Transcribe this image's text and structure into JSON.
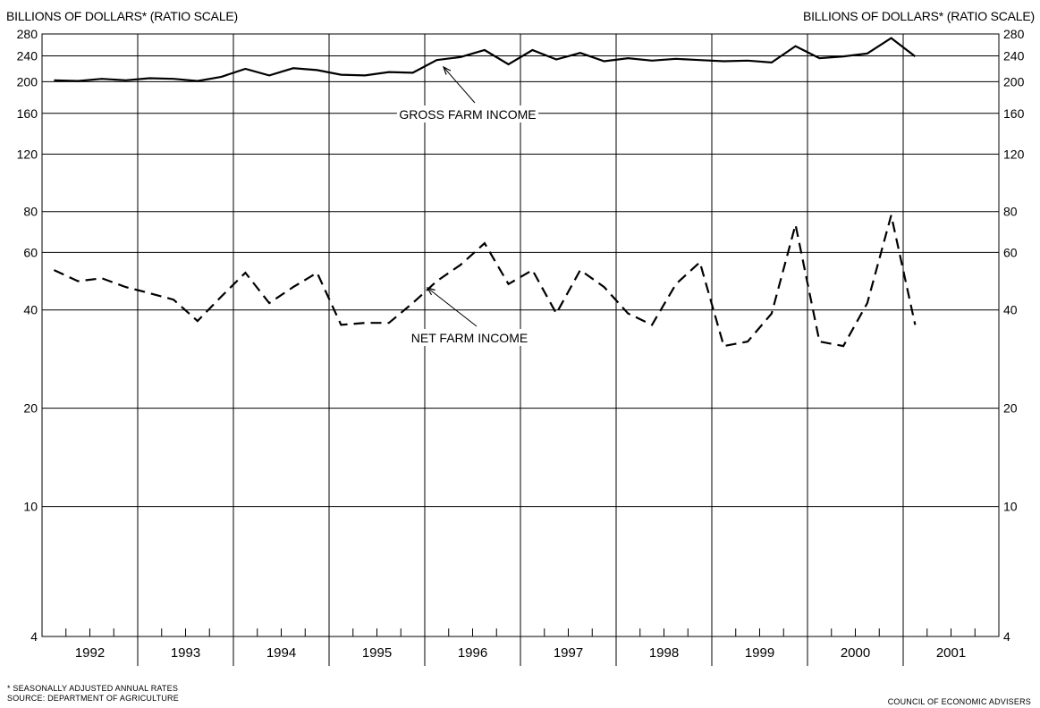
{
  "axes": {
    "left_title": "BILLIONS OF DOLLARS* (RATIO SCALE)",
    "right_title": "BILLIONS OF DOLLARS* (RATIO SCALE)"
  },
  "footnotes": {
    "note": "* SEASONALLY ADJUSTED ANNUAL RATES",
    "source": "SOURCE: DEPARTMENT OF AGRICULTURE",
    "credit": "COUNCIL OF ECONOMIC ADVISERS"
  },
  "chart_data": {
    "type": "line",
    "title": "",
    "xlabel": "",
    "ylabel": "BILLIONS OF DOLLARS* (RATIO SCALE)",
    "y_scale": "log",
    "ylim": [
      4,
      280
    ],
    "yticks": [
      4,
      10,
      20,
      40,
      60,
      80,
      120,
      160,
      200,
      240,
      280
    ],
    "x_tick_labels": [
      "1992",
      "1993",
      "1994",
      "1995",
      "1996",
      "1997",
      "1998",
      "1999",
      "2000",
      "2001"
    ],
    "x_frequency": "quarterly",
    "grid": true,
    "annotations": [
      "GROSS FARM INCOME",
      "NET FARM INCOME"
    ],
    "series": [
      {
        "name": "GROSS FARM INCOME",
        "style": "solid",
        "color": "#000000",
        "x": [
          "1992 Q1",
          "1992 Q2",
          "1992 Q3",
          "1992 Q4",
          "1993 Q1",
          "1993 Q2",
          "1993 Q3",
          "1993 Q4",
          "1994 Q1",
          "1994 Q2",
          "1994 Q3",
          "1994 Q4",
          "1995 Q1",
          "1995 Q2",
          "1995 Q3",
          "1995 Q4",
          "1996 Q1",
          "1996 Q2",
          "1996 Q3",
          "1996 Q4",
          "1997 Q1",
          "1997 Q2",
          "1997 Q3",
          "1997 Q4",
          "1998 Q1",
          "1998 Q2",
          "1998 Q3",
          "1998 Q4",
          "1999 Q1",
          "1999 Q2",
          "1999 Q3",
          "1999 Q4",
          "2000 Q1",
          "2000 Q2",
          "2000 Q3",
          "2000 Q4",
          "2001 Q1"
        ],
        "values": [
          202,
          201,
          204,
          202,
          205,
          204,
          201,
          207,
          219,
          209,
          220,
          217,
          210,
          209,
          214,
          213,
          233,
          238,
          250,
          226,
          250,
          234,
          245,
          231,
          236,
          232,
          235,
          233,
          231,
          232,
          229,
          257,
          236,
          239,
          244,
          272,
          239
        ]
      },
      {
        "name": "NET FARM INCOME",
        "style": "dashed",
        "color": "#000000",
        "x": [
          "1992 Q1",
          "1992 Q2",
          "1992 Q3",
          "1992 Q4",
          "1993 Q1",
          "1993 Q2",
          "1993 Q3",
          "1993 Q4",
          "1994 Q1",
          "1994 Q2",
          "1994 Q3",
          "1994 Q4",
          "1995 Q1",
          "1995 Q2",
          "1995 Q3",
          "1995 Q4",
          "1996 Q1",
          "1996 Q2",
          "1996 Q3",
          "1996 Q4",
          "1997 Q1",
          "1997 Q2",
          "1997 Q3",
          "1997 Q4",
          "1998 Q1",
          "1998 Q2",
          "1998 Q3",
          "1998 Q4",
          "1999 Q1",
          "1999 Q2",
          "1999 Q3",
          "1999 Q4",
          "2000 Q1",
          "2000 Q2",
          "2000 Q3",
          "2000 Q4",
          "2001 Q1"
        ],
        "values": [
          53,
          49,
          50,
          47,
          45,
          43,
          37,
          44,
          52,
          42,
          47,
          52,
          36,
          36.5,
          36.5,
          42,
          49,
          55,
          64,
          48,
          53,
          39,
          53,
          47,
          39,
          36,
          48,
          56,
          31,
          32,
          39,
          73,
          32,
          31,
          42,
          78,
          36
        ]
      }
    ]
  }
}
